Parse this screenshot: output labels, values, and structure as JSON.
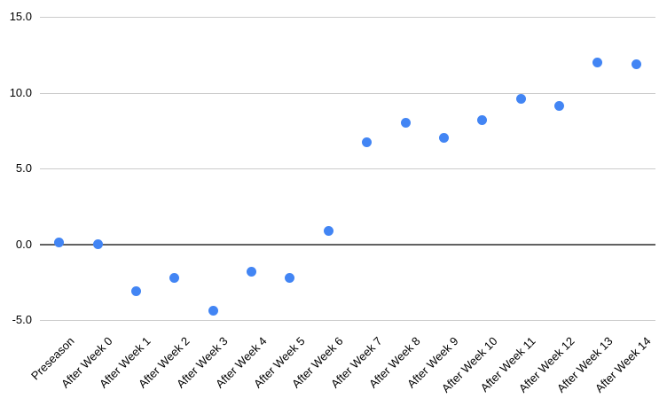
{
  "chart_data": {
    "type": "scatter",
    "title": "",
    "xlabel": "",
    "ylabel": "",
    "categories": [
      "Preseason",
      "After Week 0",
      "After Week 1",
      "After Week 2",
      "After Week 3",
      "After Week 4",
      "After Week 5",
      "After Week 6",
      "After Week 7",
      "After Week 8",
      "After Week 9",
      "After Week 10",
      "After Week 11",
      "After Week 12",
      "After Week 13",
      "After Week 14"
    ],
    "series": [
      {
        "name": "",
        "values": [
          0.1,
          0.0,
          -3.1,
          -2.2,
          -4.4,
          -1.8,
          -2.2,
          0.9,
          6.7,
          8.0,
          7.0,
          8.2,
          9.6,
          9.1,
          12.0,
          11.9
        ]
      }
    ],
    "y_ticks": [
      15.0,
      10.0,
      5.0,
      0.0,
      -5.0
    ],
    "y_tick_labels": [
      "15.0",
      "10.0",
      "5.0",
      "0.0",
      "-5.0"
    ],
    "ylim": [
      -5,
      15
    ],
    "grid": true,
    "legend_position": "none",
    "colors": {
      "point": "#4285f4",
      "gridline": "#cccccc",
      "zero_line": "#616161",
      "text": "#000000",
      "background": "#ffffff"
    }
  }
}
